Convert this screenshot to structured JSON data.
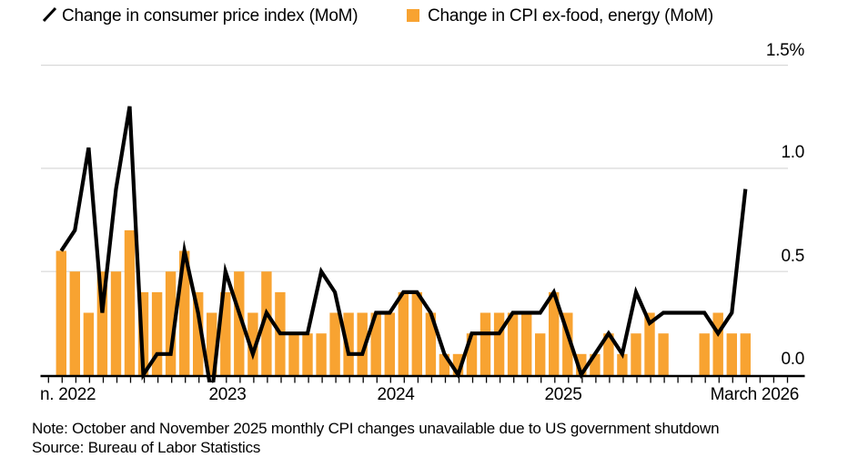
{
  "legend": {
    "line_label": "Change in consumer price index (MoM)",
    "bar_label": "Change in CPI ex-food, energy (MoM)"
  },
  "note": {
    "line1": "Note: October and November 2025 monthly CPI changes unavailable due to US government shutdown",
    "line2": "Source: Bureau of Labor Statistics"
  },
  "colors": {
    "line": "#000000",
    "bar": "#F8A331",
    "gridline": "#d8d8d8",
    "axis": "#000000",
    "text": "#000000",
    "background": "#ffffff"
  },
  "chart_data": {
    "type": "combo",
    "x": [
      "Jan 2022",
      "Feb 2022",
      "Mar 2022",
      "Apr 2022",
      "May 2022",
      "Jun 2022",
      "Jul 2022",
      "Aug 2022",
      "Sep 2022",
      "Oct 2022",
      "Nov 2022",
      "Dec 2022",
      "Jan 2023",
      "Feb 2023",
      "Mar 2023",
      "Apr 2023",
      "May 2023",
      "Jun 2023",
      "Jul 2023",
      "Aug 2023",
      "Sep 2023",
      "Oct 2023",
      "Nov 2023",
      "Dec 2023",
      "Jan 2024",
      "Feb 2024",
      "Mar 2024",
      "Apr 2024",
      "May 2024",
      "Jun 2024",
      "Jul 2024",
      "Aug 2024",
      "Sep 2024",
      "Oct 2024",
      "Nov 2024",
      "Dec 2024",
      "Jan 2025",
      "Feb 2025",
      "Mar 2025",
      "Apr 2025",
      "May 2025",
      "Jun 2025",
      "Jul 2025",
      "Aug 2025",
      "Sep 2025",
      "Oct 2025",
      "Nov 2025",
      "Dec 2025",
      "Jan 2026",
      "Feb 2026",
      "Mar 2026"
    ],
    "series": [
      {
        "name": "Change in consumer price index (MoM)",
        "type": "line",
        "color": "#000000",
        "values": [
          0.6,
          0.7,
          1.1,
          0.3,
          0.9,
          1.3,
          0.0,
          0.1,
          0.1,
          0.6,
          0.3,
          -0.1,
          0.5,
          0.3,
          0.1,
          0.3,
          0.2,
          0.2,
          0.2,
          0.5,
          0.4,
          0.1,
          0.1,
          0.3,
          0.3,
          0.4,
          0.4,
          0.3,
          0.1,
          0.0,
          0.2,
          0.2,
          0.2,
          0.3,
          0.3,
          0.3,
          0.4,
          0.2,
          0.0,
          0.1,
          0.2,
          0.1,
          0.4,
          0.25,
          0.3,
          null,
          null,
          0.3,
          0.2,
          0.3,
          0.9
        ]
      },
      {
        "name": "Change in CPI ex-food, energy (MoM)",
        "type": "bar",
        "color": "#F8A331",
        "values": [
          0.6,
          0.5,
          0.3,
          0.5,
          0.5,
          0.7,
          0.4,
          0.4,
          0.5,
          0.6,
          0.4,
          0.3,
          0.4,
          0.5,
          0.3,
          0.5,
          0.4,
          0.2,
          0.2,
          0.2,
          0.3,
          0.3,
          0.3,
          0.3,
          0.3,
          0.4,
          0.4,
          0.3,
          0.1,
          0.1,
          0.2,
          0.3,
          0.3,
          0.3,
          0.3,
          0.2,
          0.4,
          0.3,
          0.1,
          0.1,
          0.2,
          0.1,
          0.2,
          0.3,
          0.2,
          null,
          null,
          0.2,
          0.3,
          0.2,
          0.2
        ]
      }
    ],
    "x_axis": {
      "tick_labels": [
        "n. 2022",
        "2023",
        "2024",
        "2025",
        "March 2026"
      ]
    },
    "y_axis": {
      "tick_labels": [
        "1.5%",
        "1.0",
        "0.5",
        "0.0"
      ],
      "tick_values": [
        1.5,
        1.0,
        0.5,
        0.0
      ],
      "range": [
        -0.1,
        1.5
      ],
      "unit": "%"
    },
    "grid": "horizontal",
    "legend_position": "top",
    "missing_months": [
      "Oct 2025",
      "Nov 2025"
    ]
  }
}
